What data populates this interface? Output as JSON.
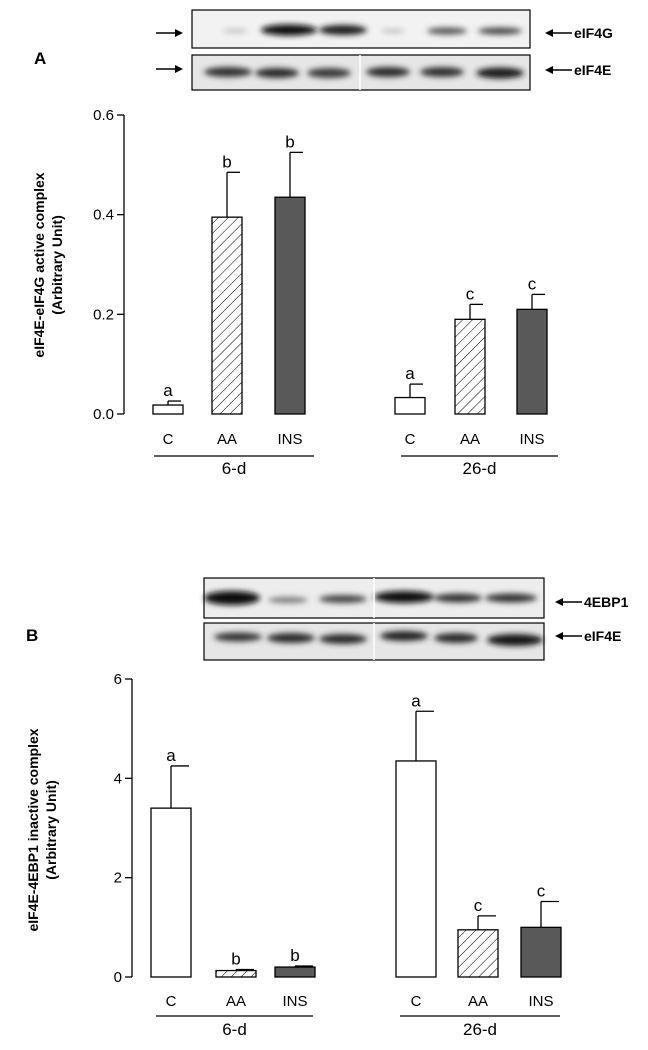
{
  "panels": [
    {
      "letter": "A",
      "blot_labels": [
        "eIF4G",
        "eIF4E"
      ],
      "chart_data": {
        "type": "bar",
        "ylabel": "eIF4E-eIF4G active complex",
        "ylabel2": "(Arbitrary Unit)",
        "ylim": [
          0,
          0.6
        ],
        "yticks": [
          "0.0",
          "0.2",
          "0.4",
          "0.6"
        ],
        "ytick_values": [
          0,
          0.2,
          0.4,
          0.6
        ],
        "groups": [
          {
            "name": "6-d",
            "bars": [
              {
                "category": "C",
                "value": 0.018,
                "error": 0.008,
                "letter": "a",
                "fill": "open"
              },
              {
                "category": "AA",
                "value": 0.395,
                "error": 0.09,
                "letter": "b",
                "fill": "hatched"
              },
              {
                "category": "INS",
                "value": 0.435,
                "error": 0.09,
                "letter": "b",
                "fill": "solid"
              }
            ]
          },
          {
            "name": "26-d",
            "bars": [
              {
                "category": "C",
                "value": 0.033,
                "error": 0.027,
                "letter": "a",
                "fill": "open"
              },
              {
                "category": "AA",
                "value": 0.19,
                "error": 0.03,
                "letter": "c",
                "fill": "hatched"
              },
              {
                "category": "INS",
                "value": 0.21,
                "error": 0.03,
                "letter": "c",
                "fill": "solid"
              }
            ]
          }
        ]
      }
    },
    {
      "letter": "B",
      "blot_labels": [
        "4EBP1",
        "eIF4E"
      ],
      "chart_data": {
        "type": "bar",
        "ylabel": "eIF4E-4EBP1 inactive complex",
        "ylabel2": "(Arbitrary Unit)",
        "ylim": [
          0,
          6
        ],
        "yticks": [
          "0",
          "2",
          "4",
          "6"
        ],
        "ytick_values": [
          0,
          2,
          4,
          6
        ],
        "groups": [
          {
            "name": "6-d",
            "bars": [
              {
                "category": "C",
                "value": 3.4,
                "error": 0.85,
                "letter": "a",
                "fill": "open"
              },
              {
                "category": "AA",
                "value": 0.13,
                "error": 0.02,
                "letter": "b",
                "fill": "hatched"
              },
              {
                "category": "INS",
                "value": 0.2,
                "error": 0.02,
                "letter": "b",
                "fill": "solid"
              }
            ]
          },
          {
            "name": "26-d",
            "bars": [
              {
                "category": "C",
                "value": 4.35,
                "error": 1.0,
                "letter": "a",
                "fill": "open"
              },
              {
                "category": "AA",
                "value": 0.95,
                "error": 0.28,
                "letter": "c",
                "fill": "hatched"
              },
              {
                "category": "INS",
                "value": 1.0,
                "error": 0.52,
                "letter": "c",
                "fill": "solid"
              }
            ]
          }
        ]
      }
    }
  ],
  "colors": {
    "solid_bar": "#595959",
    "axis": "#000000",
    "background": "#ffffff"
  }
}
